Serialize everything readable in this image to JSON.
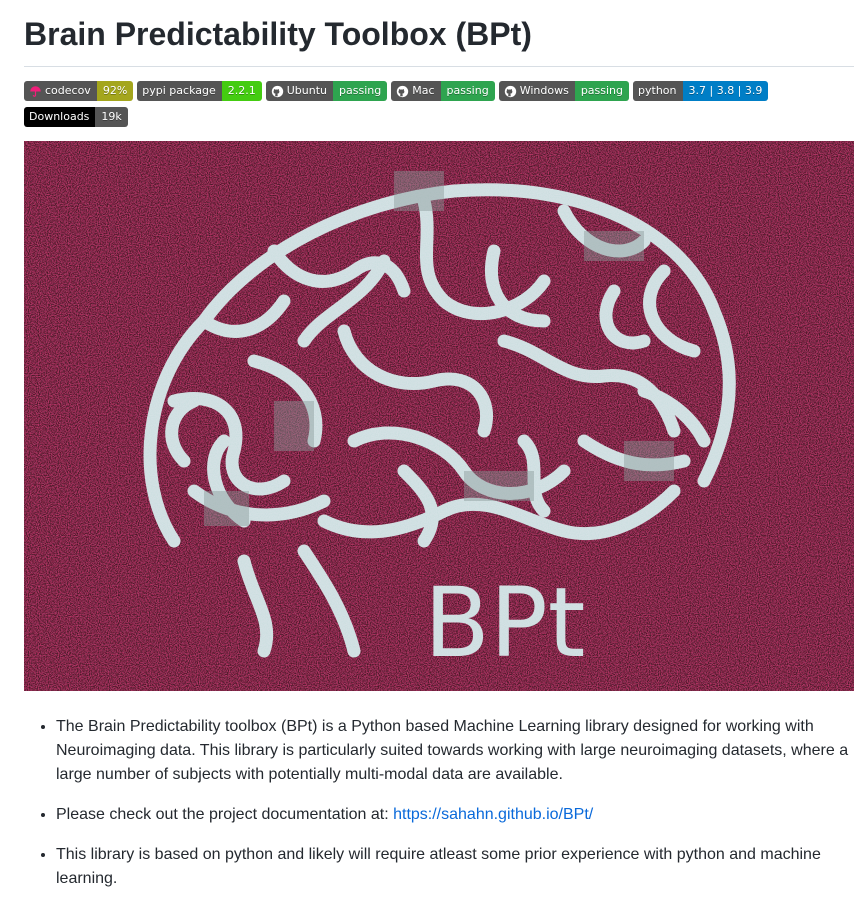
{
  "page": {
    "title": "Brain Predictability Toolbox (BPt)"
  },
  "badges": [
    {
      "label": "codecov",
      "value": "92%",
      "icon": "codecov-umbrella-icon",
      "value_color": "#a4a61d",
      "label_color": "#555555"
    },
    {
      "label": "pypi package",
      "value": "2.2.1",
      "icon": "",
      "value_color": "#4c1",
      "label_color": "#555555"
    },
    {
      "label": "Ubuntu",
      "value": "passing",
      "icon": "github-icon",
      "value_color": "#2ea44f",
      "label_color": "#555555"
    },
    {
      "label": "Mac",
      "value": "passing",
      "icon": "github-icon",
      "value_color": "#2ea44f",
      "label_color": "#555555"
    },
    {
      "label": "Windows",
      "value": "passing",
      "icon": "github-icon",
      "value_color": "#2ea44f",
      "label_color": "#555555"
    },
    {
      "label": "python",
      "value": "3.7 | 3.8 | 3.9",
      "icon": "",
      "value_color": "#007ec6",
      "label_color": "#555555"
    },
    {
      "label": "Downloads",
      "value": "19k",
      "icon": "",
      "value_color": "#555555",
      "label_color": "#000000"
    }
  ],
  "hero": {
    "logo_text": "BPt",
    "background_color": "#5a1620",
    "brain_color": "#d8f0f0"
  },
  "bullets": {
    "item1": "The Brain Predictability toolbox (BPt) is a Python based Machine Learning library designed for working with Neuroimaging data. This library is particularly suited towards working with large neuroimaging datasets, where a large number of subjects with potentially multi-modal data are available.",
    "item2_prefix": "Please check out the project documentation at: ",
    "item2_link": "https://sahahn.github.io/BPt/",
    "item3": "This library is based on python and likely will require atleast some prior experience with python and machine learning."
  }
}
